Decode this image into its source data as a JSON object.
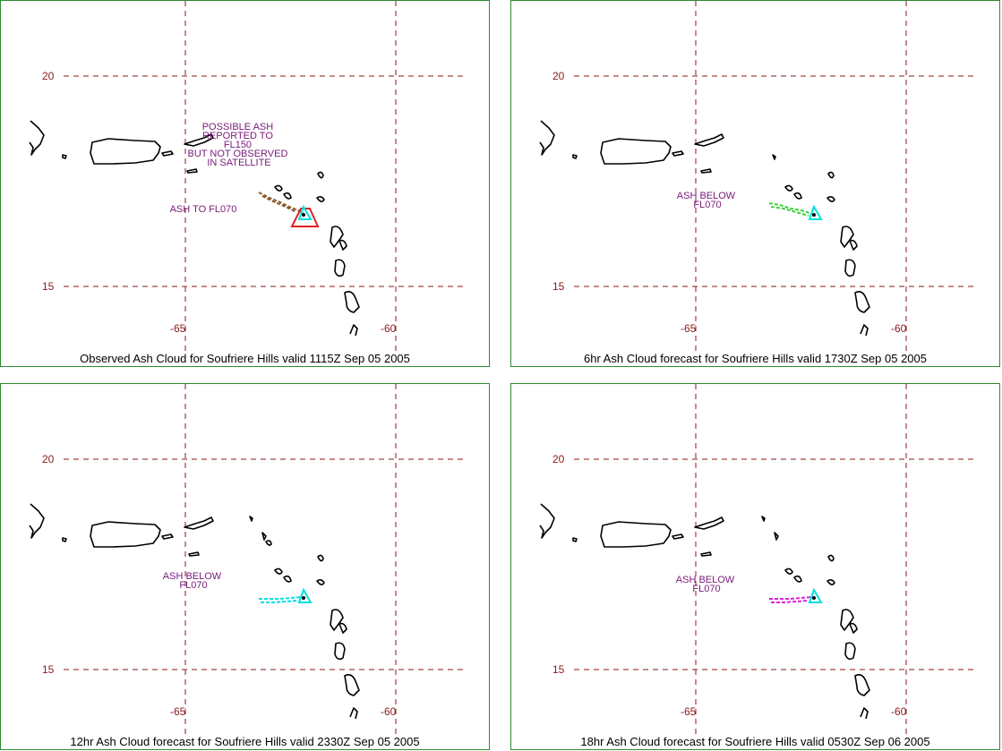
{
  "colors": {
    "grid": "#8b1a1a",
    "panel_border": "#2e8b2e",
    "annotation": "#7a1a7a",
    "coastline": "#000000",
    "volcano_marker": "#00e0e0"
  },
  "panels": [
    {
      "caption": "Observed Ash Cloud for Soufriere  Hills valid 1115Z Sep 05 2005",
      "lat_labels": [
        "20",
        "15"
      ],
      "lon_labels": [
        "-65",
        "-60"
      ],
      "ash_color": "#8b5a2b",
      "area_color": "#e02020",
      "annotations": [
        {
          "lines": [
            "POSSIBLE ASH",
            "REPORTED TO",
            "FL150",
            "BUT NOT OBSERVED",
            "IN SATELLITE"
          ]
        },
        {
          "lines": [
            "ASH TO FL070"
          ]
        }
      ]
    },
    {
      "caption": "6hr Ash Cloud forecast for Soufriere  Hills valid 1730Z Sep 05 2005",
      "lat_labels": [
        "20",
        "15"
      ],
      "lon_labels": [
        "-65",
        "-60"
      ],
      "ash_color": "#3cd23c",
      "annotations": [
        {
          "lines": [
            "ASH BELOW",
            "FL070"
          ]
        }
      ]
    },
    {
      "caption": "12hr Ash Cloud forecast for Soufriere  Hills valid 2330Z Sep 05 2005",
      "lat_labels": [
        "20",
        "15"
      ],
      "lon_labels": [
        "-65",
        "-60"
      ],
      "ash_color": "#00e0e0",
      "annotations": [
        {
          "lines": [
            "ASH BELOW",
            "FL070"
          ]
        }
      ]
    },
    {
      "caption": "18hr Ash Cloud forecast for Soufriere  Hills valid 0530Z Sep 06 2005",
      "lat_labels": [
        "20",
        "15"
      ],
      "lon_labels": [
        "-65",
        "-60"
      ],
      "ash_color": "#e020e0",
      "annotations": [
        {
          "lines": [
            "ASH BELOW",
            "FL070"
          ]
        }
      ]
    }
  ]
}
